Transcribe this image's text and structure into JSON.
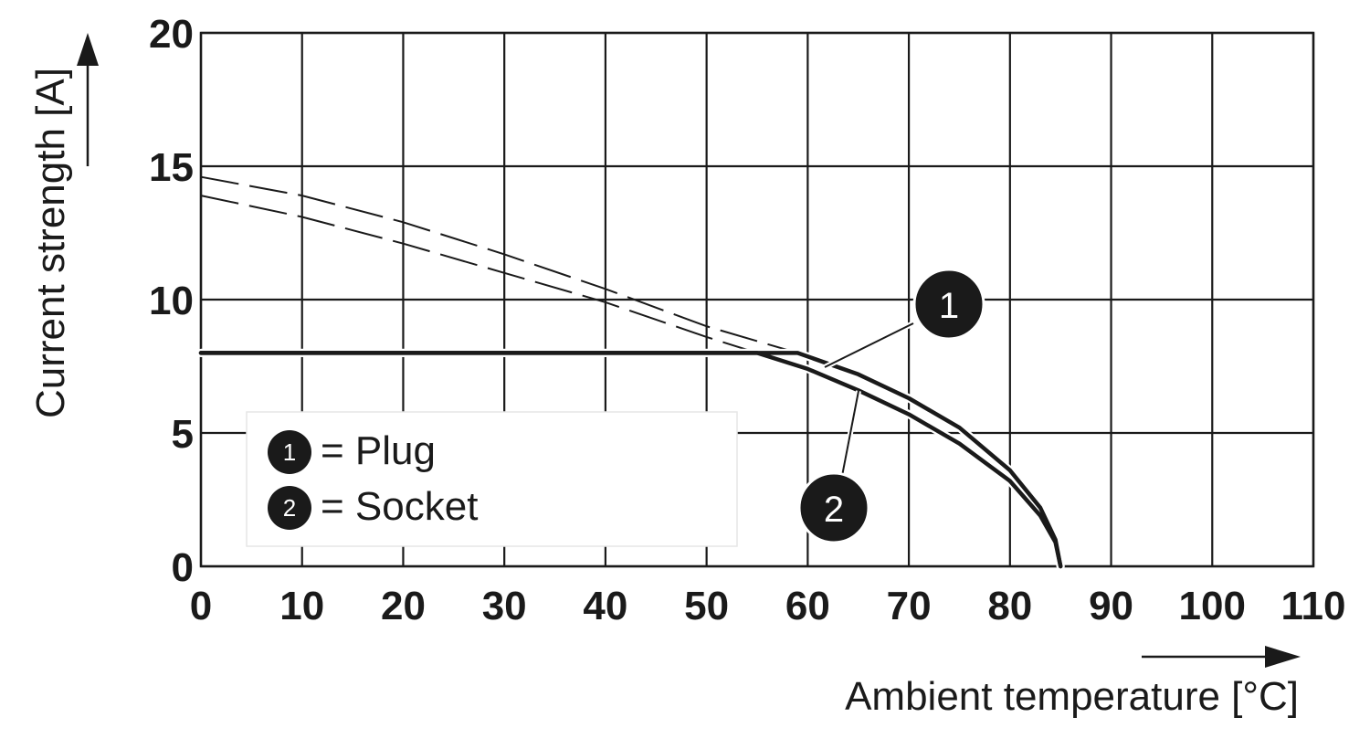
{
  "chart_data": {
    "type": "line",
    "xlabel": "Ambient temperature [°C]",
    "ylabel": "Current strength [A]",
    "xlim": [
      0,
      110
    ],
    "ylim": [
      0,
      20
    ],
    "x_ticks": [
      "0",
      "10",
      "20",
      "30",
      "40",
      "50",
      "60",
      "70",
      "80",
      "90",
      "100",
      "110"
    ],
    "y_ticks": [
      "0",
      "5",
      "10",
      "15",
      "20"
    ],
    "grid": true,
    "legend": {
      "placement": "bottom-left",
      "entries": [
        {
          "marker": "1",
          "text": "= Plug"
        },
        {
          "marker": "2",
          "text": "= Socket"
        }
      ]
    },
    "series": [
      {
        "name": "Plug",
        "marker": "1",
        "solid": [
          [
            0,
            8.0
          ],
          [
            59,
            8.0
          ],
          [
            65,
            7.2
          ],
          [
            70,
            6.3
          ],
          [
            75,
            5.2
          ],
          [
            80,
            3.6
          ],
          [
            83,
            2.2
          ],
          [
            84.5,
            1.0
          ],
          [
            85,
            0
          ]
        ],
        "dashed": [
          [
            0,
            14.6
          ],
          [
            10,
            13.9
          ],
          [
            20,
            12.9
          ],
          [
            30,
            11.7
          ],
          [
            40,
            10.4
          ],
          [
            50,
            9.0
          ],
          [
            59,
            8.0
          ]
        ]
      },
      {
        "name": "Socket",
        "marker": "2",
        "solid": [
          [
            0,
            8.0
          ],
          [
            55,
            8.0
          ],
          [
            60,
            7.4
          ],
          [
            65,
            6.6
          ],
          [
            70,
            5.7
          ],
          [
            75,
            4.6
          ],
          [
            80,
            3.2
          ],
          [
            83,
            1.9
          ],
          [
            84.5,
            0.9
          ],
          [
            85,
            0
          ]
        ],
        "dashed": [
          [
            0,
            13.9
          ],
          [
            10,
            13.1
          ],
          [
            20,
            12.1
          ],
          [
            30,
            11.0
          ],
          [
            40,
            9.9
          ],
          [
            50,
            8.6
          ],
          [
            55,
            8.0
          ]
        ]
      }
    ]
  }
}
